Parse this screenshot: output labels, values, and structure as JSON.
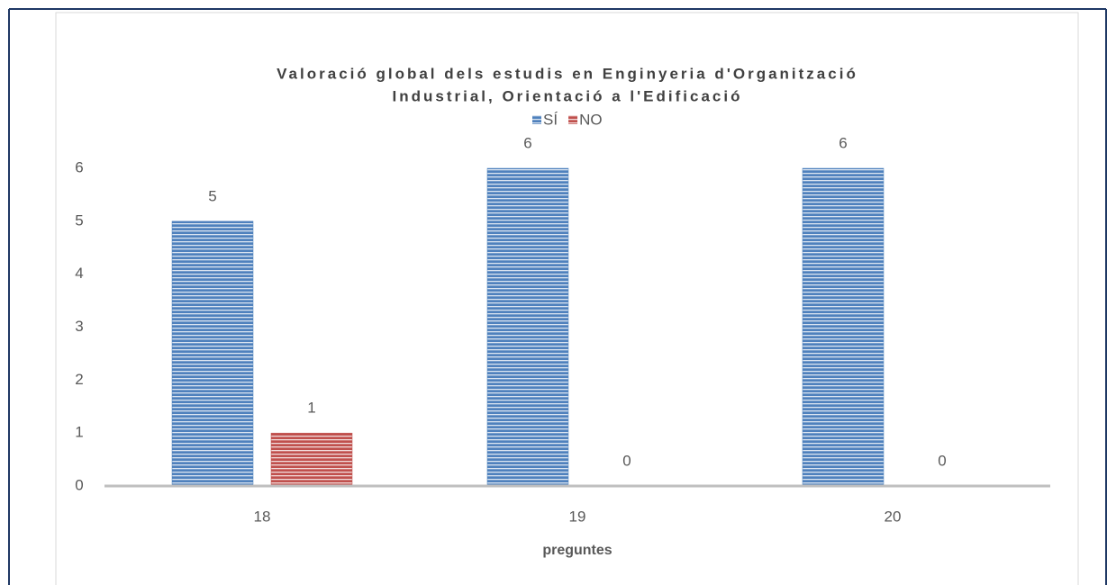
{
  "chart_data": {
    "type": "bar",
    "title": [
      "Valoració global dels estudis en Enginyeria d'Organització",
      "Industrial, Orientació a l'Edificació"
    ],
    "x_label": "preguntes",
    "categories": [
      "18",
      "19",
      "20"
    ],
    "series": [
      {
        "name": "SÍ",
        "color": "#4f81bd",
        "values": [
          5,
          6,
          6
        ]
      },
      {
        "name": "NO",
        "color": "#c0504d",
        "values": [
          1,
          0,
          0
        ]
      }
    ],
    "ylim": [
      0,
      6
    ],
    "yticks": [
      0,
      1,
      2,
      3,
      4,
      5,
      6
    ],
    "grid": false,
    "legend": "top"
  }
}
